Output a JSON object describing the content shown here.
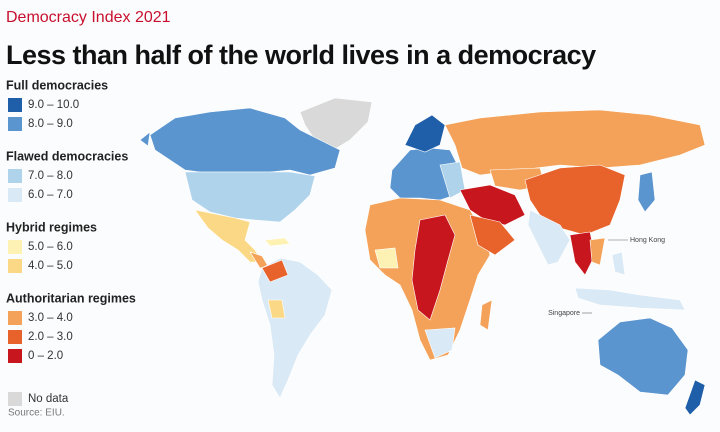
{
  "header": {
    "title": "Democracy Index 2021",
    "subtitle": "Less than half of the world lives in a democracy"
  },
  "legend": {
    "groups": [
      {
        "title": "Full democracies",
        "items": [
          {
            "label": "9.0 – 10.0",
            "color": "#1f5ea8"
          },
          {
            "label": "8.0 – 9.0",
            "color": "#5b95cf"
          }
        ]
      },
      {
        "title": "Flawed democracies",
        "items": [
          {
            "label": "7.0 – 8.0",
            "color": "#b0d3ec"
          },
          {
            "label": "6.0 – 7.0",
            "color": "#d9e9f5"
          }
        ]
      },
      {
        "title": "Hybrid regimes",
        "items": [
          {
            "label": "5.0 – 6.0",
            "color": "#fdf2b3"
          },
          {
            "label": "4.0 – 5.0",
            "color": "#fbd885"
          }
        ]
      },
      {
        "title": "Authoritarian regimes",
        "items": [
          {
            "label": "3.0 – 4.0",
            "color": "#f4a259"
          },
          {
            "label": "2.0 – 3.0",
            "color": "#e8622c"
          },
          {
            "label": "0 – 2.0",
            "color": "#c8161e"
          }
        ]
      }
    ],
    "no_data": {
      "label": "No data",
      "color": "#d9d9d9"
    }
  },
  "map_labels": {
    "hong_kong": "Hong Kong",
    "singapore": "Singapore"
  },
  "source": "Source: EIU."
}
